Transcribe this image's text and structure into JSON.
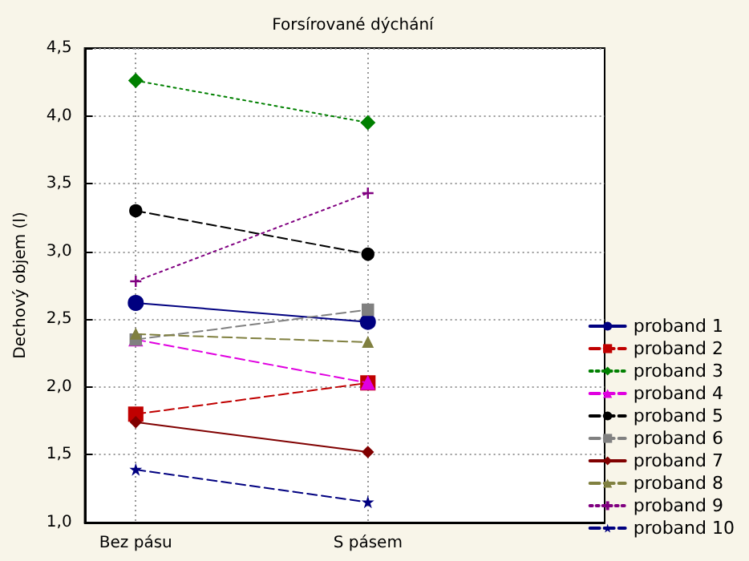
{
  "chart_data": {
    "type": "line",
    "title": "Forsírované dýchání",
    "ylabel": "Dechový objem (l)",
    "categories": [
      "Bez pásu",
      "S pásem"
    ],
    "series": [
      {
        "name": "proband 1",
        "color": "#000080",
        "values": [
          2.62,
          2.48
        ],
        "marker": "circle",
        "line_style": "solid"
      },
      {
        "name": "proband 2",
        "color": "#c00000",
        "values": [
          1.8,
          2.03
        ],
        "marker": "square",
        "line_style": "dashed"
      },
      {
        "name": "proband 3",
        "color": "#008000",
        "values": [
          4.26,
          3.95
        ],
        "marker": "diamond",
        "line_style": "dotted"
      },
      {
        "name": "proband 4",
        "color": "#e000e0",
        "values": [
          2.35,
          2.03
        ],
        "marker": "triangle",
        "line_style": "dashed"
      },
      {
        "name": "proband 5",
        "color": "#000000",
        "values": [
          3.3,
          2.98
        ],
        "marker": "circle",
        "line_style": "dashed"
      },
      {
        "name": "proband 6",
        "color": "#808080",
        "values": [
          2.35,
          2.57
        ],
        "marker": "square",
        "line_style": "dashed"
      },
      {
        "name": "proband 7",
        "color": "#800000",
        "values": [
          1.74,
          1.52
        ],
        "marker": "diamond",
        "line_style": "solid"
      },
      {
        "name": "proband 8",
        "color": "#808040",
        "values": [
          2.39,
          2.33
        ],
        "marker": "triangle",
        "line_style": "dashed"
      },
      {
        "name": "proband 9",
        "color": "#800080",
        "values": [
          2.78,
          3.43
        ],
        "marker": "cross",
        "line_style": "dotted"
      },
      {
        "name": "proband 10",
        "color": "#000080",
        "values": [
          1.39,
          1.15
        ],
        "marker": "star",
        "line_style": "dashed"
      }
    ],
    "ylim": [
      1,
      4.5
    ],
    "yticks": [
      {
        "value": 1,
        "label": "1,0"
      },
      {
        "value": 1.5,
        "label": "1,5"
      },
      {
        "value": 2,
        "label": "2,0"
      },
      {
        "value": 2.5,
        "label": "2,5"
      },
      {
        "value": 3,
        "label": "3,0"
      },
      {
        "value": 3.5,
        "label": "3,5"
      },
      {
        "value": 4,
        "label": "4,0"
      },
      {
        "value": 4.5,
        "label": "4,5"
      }
    ],
    "grid": true,
    "legend": "right"
  }
}
